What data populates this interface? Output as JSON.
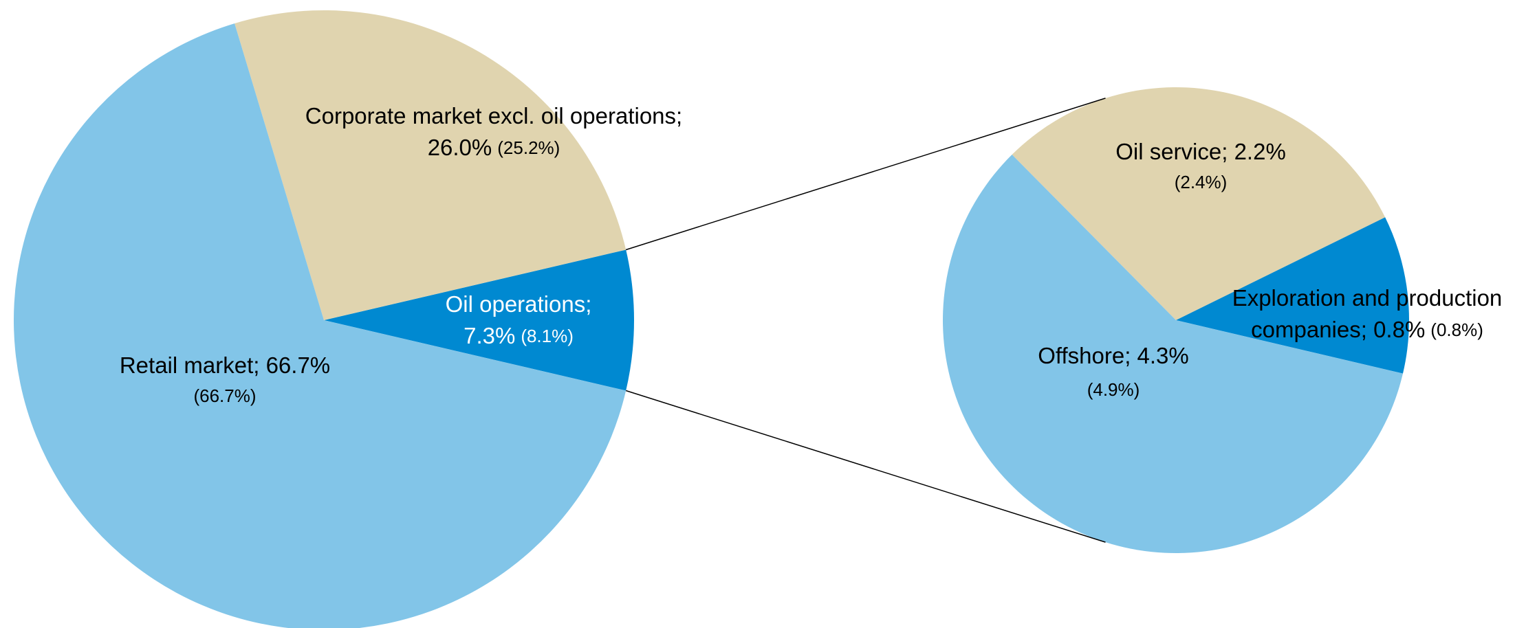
{
  "chart_data": [
    {
      "type": "pie",
      "labels": [
        [
          "Oil operations;",
          "7.3%"
        ],
        [
          "Corporate market excl. oil operations;",
          "26.0%"
        ],
        [
          "Retail market; 66.7%"
        ]
      ],
      "values": [
        7.3,
        26.0,
        66.7
      ],
      "comparison_values": [
        8.1,
        25.2,
        66.7
      ],
      "comparison_labels": [
        "(8.1%)",
        "(25.2%)",
        "(66.7%)"
      ],
      "colors": [
        "#0089d1",
        "#e0d4af",
        "#82c5e8"
      ]
    },
    {
      "type": "pie",
      "labels": [
        [
          "Oil service; 2.2%"
        ],
        [
          "Exploration and production",
          "companies; 0.8%"
        ],
        [
          "Offshore; 4.3%"
        ]
      ],
      "values": [
        2.2,
        0.8,
        4.3
      ],
      "comparison_values": [
        2.4,
        0.8,
        4.9
      ],
      "comparison_labels": [
        "(2.4%)",
        "(0.8%)",
        "(4.9%)"
      ],
      "colors": [
        "#e0d4af",
        "#0089d1",
        "#82c5e8"
      ]
    }
  ]
}
